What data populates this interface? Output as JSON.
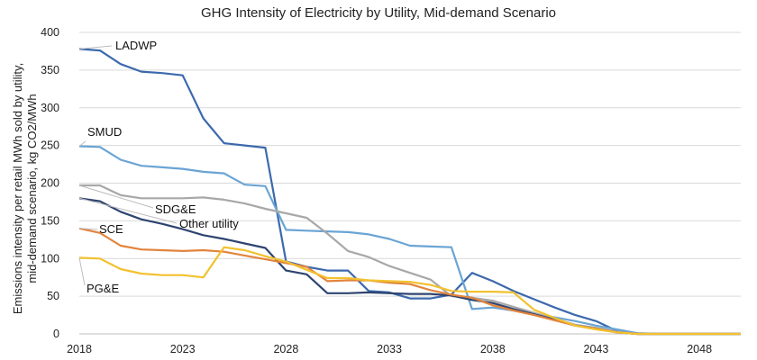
{
  "chart_data": {
    "type": "line",
    "title": "GHG Intensity of Electricity by Utility, Mid-demand Scenario",
    "xlabel": "",
    "ylabel_lines": [
      "Emissions intensity per retail MWh sold by utility,",
      "mid-demand scenario, kg CO2/MWh"
    ],
    "x": [
      2018,
      2019,
      2020,
      2021,
      2022,
      2023,
      2024,
      2025,
      2026,
      2027,
      2028,
      2029,
      2030,
      2031,
      2032,
      2033,
      2034,
      2035,
      2036,
      2037,
      2038,
      2039,
      2040,
      2041,
      2042,
      2043,
      2044,
      2045,
      2046,
      2047,
      2048,
      2049,
      2050
    ],
    "xticks": [
      2018,
      2023,
      2028,
      2033,
      2038,
      2043,
      2048
    ],
    "xlim": [
      2018,
      2050
    ],
    "yticks": [
      0,
      50,
      100,
      150,
      200,
      250,
      300,
      350,
      400
    ],
    "ylim": [
      0,
      400
    ],
    "grid": "horizontal",
    "series": [
      {
        "name": "LADWP",
        "color": "#3c69ad",
        "values": [
          378,
          376,
          358,
          348,
          346,
          343,
          286,
          253,
          250,
          247,
          96,
          89,
          84,
          84,
          57,
          55,
          47,
          47,
          52,
          81,
          70,
          57,
          46,
          35,
          25,
          17,
          4,
          0,
          0,
          0,
          0,
          0,
          0
        ]
      },
      {
        "name": "SMUD",
        "color": "#6aa4d4",
        "values": [
          249,
          248,
          231,
          223,
          221,
          219,
          215,
          213,
          198,
          196,
          138,
          137,
          136,
          135,
          132,
          126,
          117,
          116,
          115,
          33,
          35,
          31,
          26,
          22,
          17,
          11,
          6,
          1,
          0,
          0,
          0,
          0,
          0
        ]
      },
      {
        "name": "SDG&E",
        "color": "#a8a8a8",
        "values": [
          197,
          197,
          184,
          180,
          180,
          180,
          181,
          178,
          173,
          166,
          160,
          154,
          133,
          110,
          102,
          90,
          81,
          72,
          50,
          48,
          44,
          36,
          28,
          20,
          12,
          8,
          3,
          0,
          0,
          0,
          0,
          0,
          0
        ]
      },
      {
        "name": "Other utility",
        "color": "#2e4470",
        "values": [
          180,
          176,
          162,
          152,
          146,
          139,
          131,
          126,
          120,
          114,
          84,
          79,
          54,
          54,
          55,
          54,
          53,
          53,
          51,
          45,
          41,
          33,
          26,
          19,
          11,
          7,
          2,
          0,
          0,
          0,
          0,
          0,
          0
        ]
      },
      {
        "name": "SCE",
        "color": "#e2843d",
        "values": [
          140,
          134,
          117,
          112,
          111,
          110,
          111,
          109,
          104,
          99,
          94,
          89,
          70,
          71,
          71,
          68,
          66,
          58,
          52,
          48,
          38,
          31,
          25,
          18,
          11,
          7,
          2,
          0,
          0,
          0,
          0,
          0,
          0
        ]
      },
      {
        "name": "PG&E",
        "color": "#f2c12e",
        "values": [
          101,
          100,
          86,
          80,
          78,
          78,
          75,
          115,
          111,
          103,
          96,
          85,
          74,
          74,
          71,
          70,
          69,
          65,
          57,
          56,
          56,
          55,
          32,
          21,
          11,
          6,
          2,
          0,
          0,
          0,
          0,
          0,
          0
        ]
      }
    ],
    "annotations": [
      {
        "text": "LADWP",
        "series": "LADWP"
      },
      {
        "text": "SMUD",
        "series": "SMUD"
      },
      {
        "text": "SDG&E",
        "series": "SDG&E"
      },
      {
        "text": "Other utility",
        "series": "Other utility"
      },
      {
        "text": "SCE",
        "series": "SCE"
      },
      {
        "text": "PG&E",
        "series": "PG&E"
      }
    ]
  }
}
